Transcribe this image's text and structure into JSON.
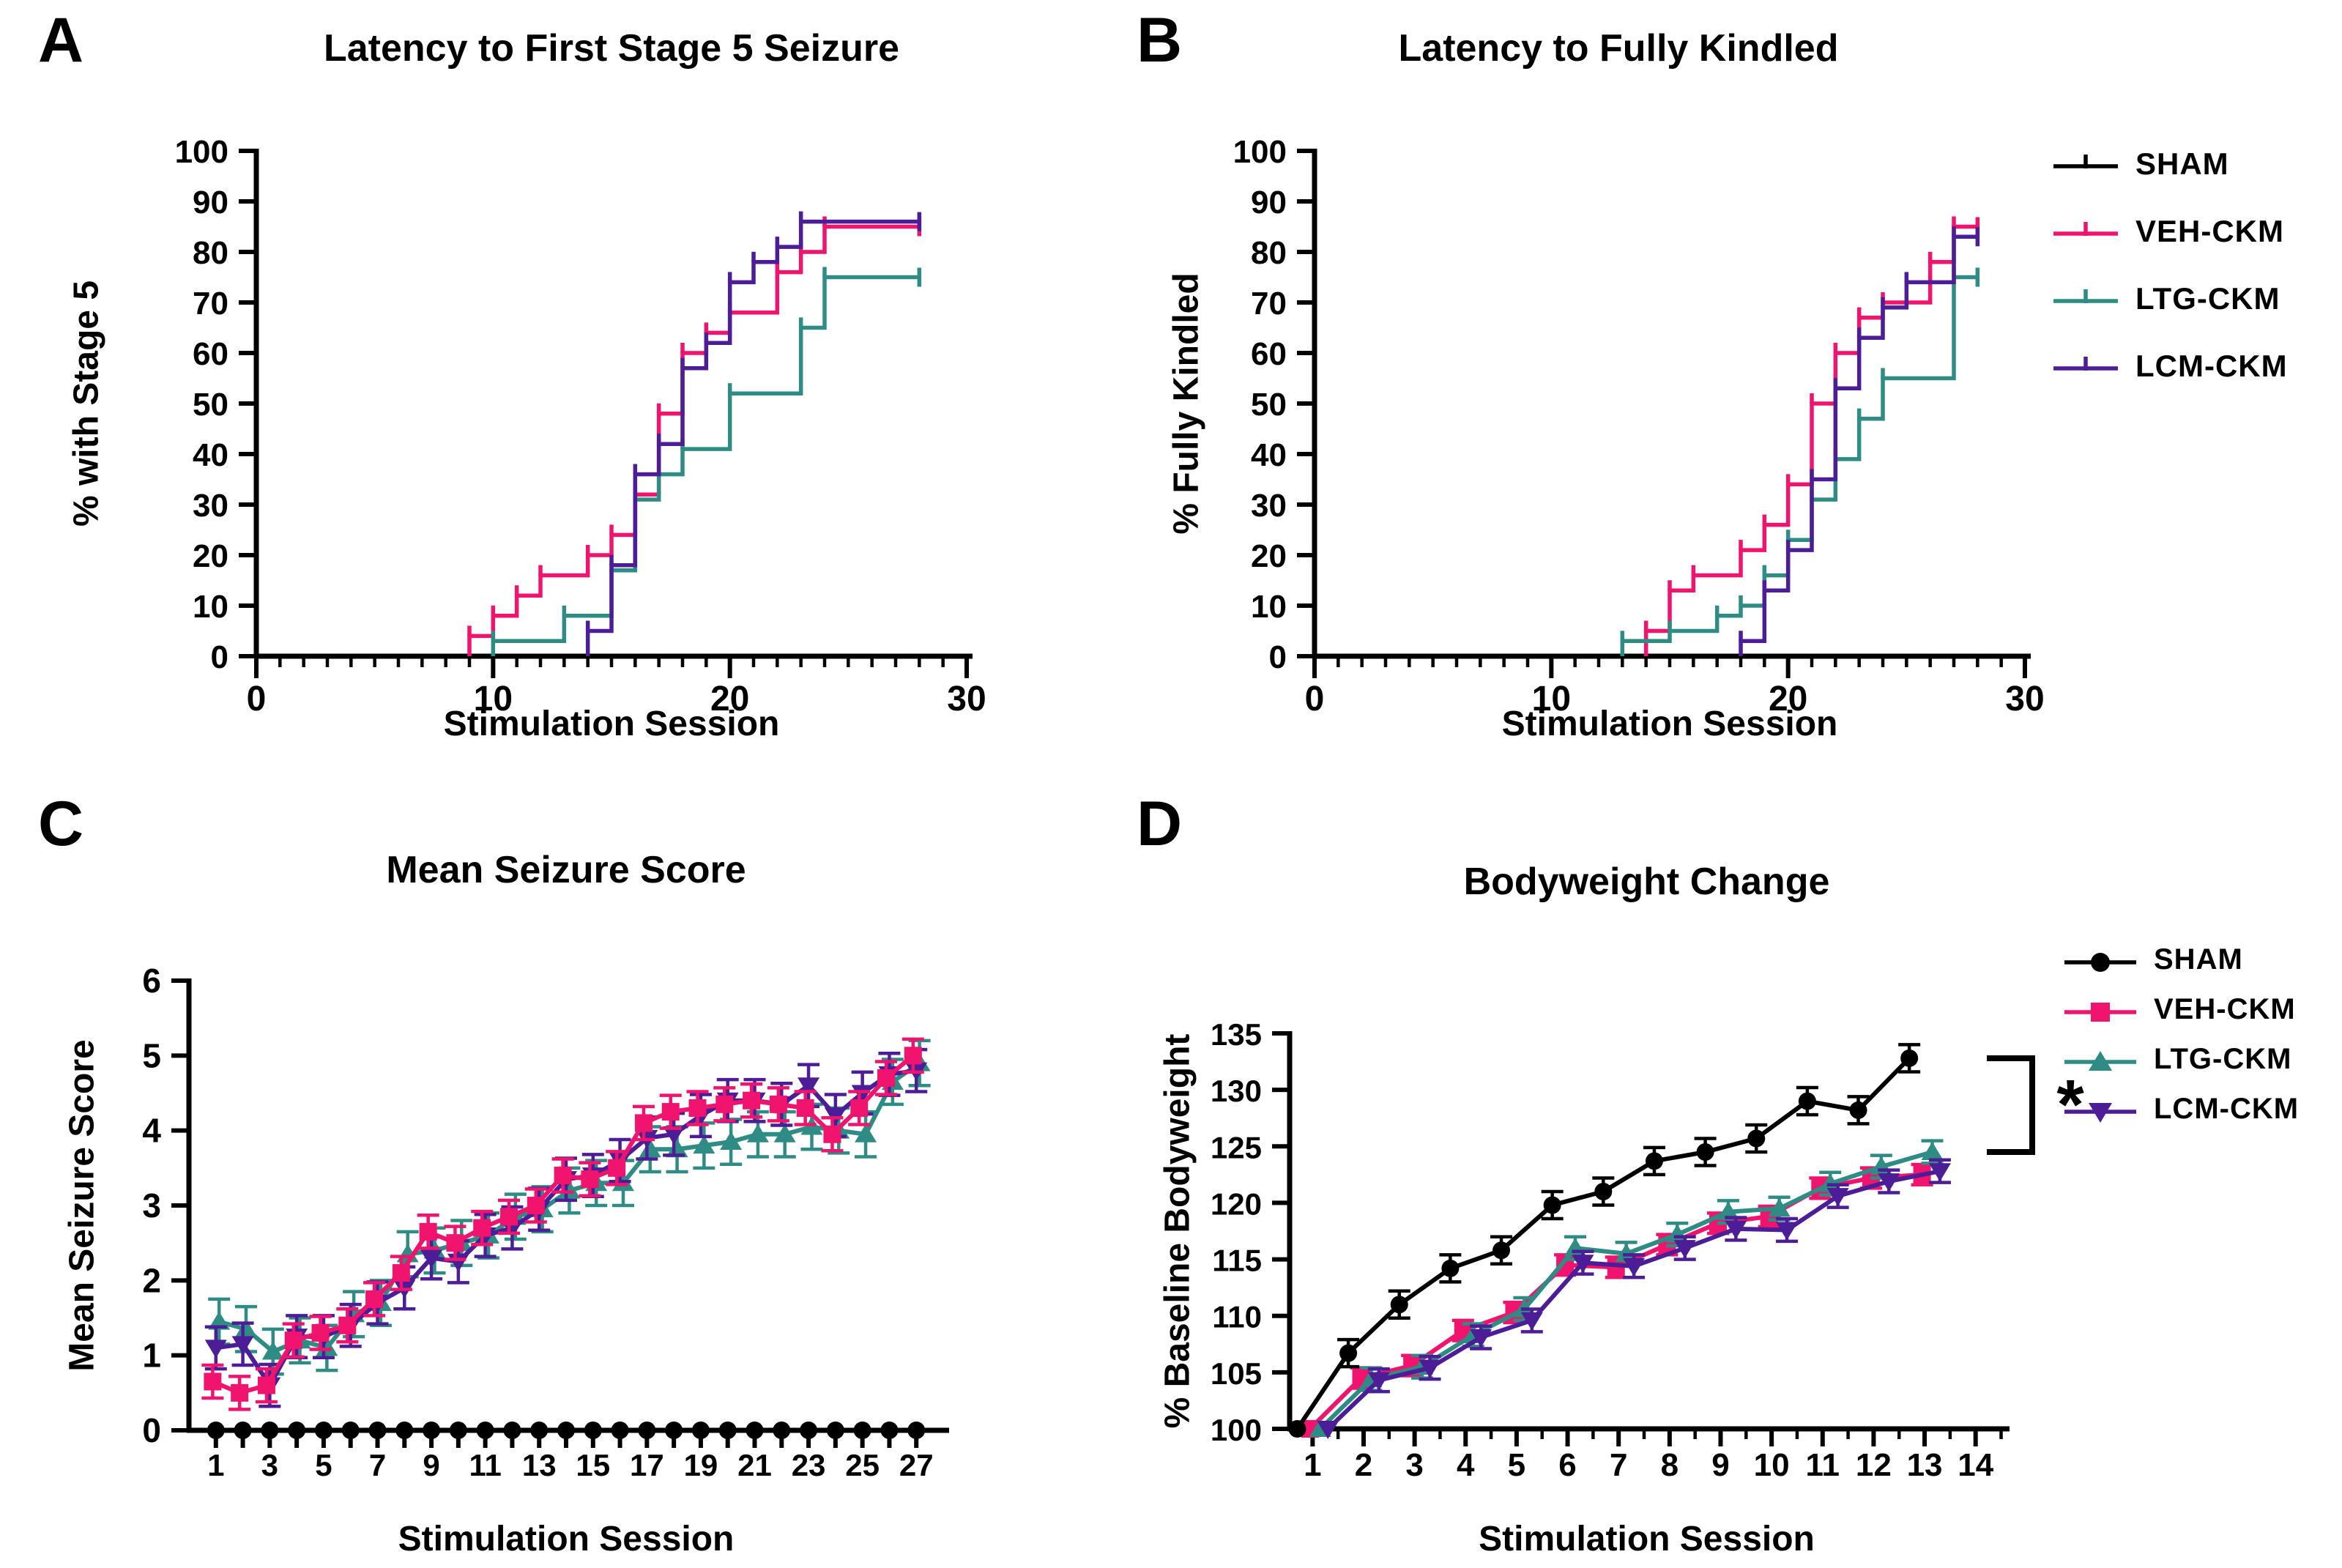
{
  "colors": {
    "SHAM": "#000000",
    "VEH-CKM": "#F0146E",
    "LTG-CKM": "#2E8C85",
    "LCM-CKM": "#4C1D96",
    "background": "#FFFFFF",
    "text": "#000000"
  },
  "panels": {
    "A": {
      "letter": "A",
      "title": "Latency to First Stage 5 Seizure",
      "y_label": "% with Stage 5",
      "x_label": "Stimulation Session"
    },
    "B": {
      "letter": "B",
      "title": "Latency to Fully Kindled",
      "y_label": "% Fully Kindled",
      "x_label": "Stimulation Session"
    },
    "C": {
      "letter": "C",
      "title": "Mean Seizure Score",
      "y_label": "Mean Seizure Score",
      "x_label": "Stimulation Session"
    },
    "D": {
      "letter": "D",
      "title": "Bodyweight Change",
      "y_label": "% Baseline Bodyweight",
      "x_label": "Stimulation Session"
    }
  },
  "legend_top": {
    "items": [
      {
        "label": "SHAM",
        "series": "SHAM",
        "marker": "step-tick"
      },
      {
        "label": "VEH-CKM",
        "series": "VEH-CKM",
        "marker": "step-tick"
      },
      {
        "label": "LTG-CKM",
        "series": "LTG-CKM",
        "marker": "step-tick"
      },
      {
        "label": "LCM-CKM",
        "series": "LCM-CKM",
        "marker": "step-tick"
      }
    ]
  },
  "legend_bottom": {
    "items": [
      {
        "label": "SHAM",
        "series": "SHAM",
        "marker": "circle"
      },
      {
        "label": "VEH-CKM",
        "series": "VEH-CKM",
        "marker": "square"
      },
      {
        "label": "LTG-CKM",
        "series": "LTG-CKM",
        "marker": "triangle-up"
      },
      {
        "label": "LCM-CKM",
        "series": "LCM-CKM",
        "marker": "triangle-down"
      }
    ]
  },
  "significance_label": "*",
  "chart_data": [
    {
      "panel": "A",
      "type": "step",
      "title": "Latency to First Stage 5 Seizure",
      "xlabel": "Stimulation Session",
      "ylabel": "% with Stage 5",
      "xlim": [
        0,
        30
      ],
      "ylim": [
        0,
        100
      ],
      "x_major_ticks": [
        0,
        10,
        20,
        30
      ],
      "x_minor_step": 1,
      "y_ticks": [
        0,
        10,
        20,
        30,
        40,
        50,
        60,
        70,
        80,
        90,
        100
      ],
      "end_x": 28,
      "series": [
        {
          "name": "SHAM",
          "steps": []
        },
        {
          "name": "VEH-CKM",
          "steps": [
            [
              9,
              4
            ],
            [
              10,
              8
            ],
            [
              11,
              12
            ],
            [
              12,
              16
            ],
            [
              14,
              20
            ],
            [
              15,
              24
            ],
            [
              16,
              32
            ],
            [
              17,
              48
            ],
            [
              18,
              60
            ],
            [
              19,
              64
            ],
            [
              20,
              68
            ],
            [
              22,
              76
            ],
            [
              23,
              80
            ],
            [
              24,
              85
            ]
          ]
        },
        {
          "name": "LTG-CKM",
          "steps": [
            [
              10,
              3
            ],
            [
              13,
              8
            ],
            [
              15,
              17
            ],
            [
              16,
              31
            ],
            [
              17,
              36
            ],
            [
              18,
              41
            ],
            [
              20,
              52
            ],
            [
              23,
              65
            ],
            [
              24,
              75
            ]
          ]
        },
        {
          "name": "LCM-CKM",
          "steps": [
            [
              14,
              5
            ],
            [
              15,
              18
            ],
            [
              16,
              36
            ],
            [
              17,
              42
            ],
            [
              18,
              57
            ],
            [
              19,
              62
            ],
            [
              20,
              74
            ],
            [
              21,
              78
            ],
            [
              22,
              81
            ],
            [
              23,
              86
            ]
          ]
        }
      ]
    },
    {
      "panel": "B",
      "type": "step",
      "title": "Latency to Fully Kindled",
      "xlabel": "Stimulation Session",
      "ylabel": "% Fully Kindled",
      "xlim": [
        0,
        30
      ],
      "ylim": [
        0,
        100
      ],
      "x_major_ticks": [
        0,
        10,
        20,
        30
      ],
      "x_minor_step": 1,
      "y_ticks": [
        0,
        10,
        20,
        30,
        40,
        50,
        60,
        70,
        80,
        90,
        100
      ],
      "end_x": 28,
      "series": [
        {
          "name": "SHAM",
          "steps": []
        },
        {
          "name": "VEH-CKM",
          "steps": [
            [
              14,
              5
            ],
            [
              15,
              13
            ],
            [
              16,
              16
            ],
            [
              18,
              21
            ],
            [
              19,
              26
            ],
            [
              20,
              34
            ],
            [
              21,
              50
            ],
            [
              22,
              60
            ],
            [
              23,
              67
            ],
            [
              24,
              70
            ],
            [
              26,
              78
            ],
            [
              27,
              85
            ]
          ]
        },
        {
          "name": "LTG-CKM",
          "steps": [
            [
              13,
              3
            ],
            [
              15,
              5
            ],
            [
              17,
              8
            ],
            [
              18,
              10
            ],
            [
              19,
              16
            ],
            [
              20,
              23
            ],
            [
              21,
              31
            ],
            [
              22,
              39
            ],
            [
              23,
              47
            ],
            [
              24,
              55
            ],
            [
              27,
              75
            ]
          ]
        },
        {
          "name": "LCM-CKM",
          "steps": [
            [
              18,
              3
            ],
            [
              19,
              13
            ],
            [
              20,
              21
            ],
            [
              21,
              35
            ],
            [
              22,
              53
            ],
            [
              23,
              63
            ],
            [
              24,
              69
            ],
            [
              25,
              74
            ],
            [
              27,
              83
            ]
          ]
        }
      ]
    },
    {
      "panel": "C",
      "type": "line",
      "title": "Mean Seizure Score",
      "xlabel": "Stimulation Session",
      "ylabel": "Mean Seizure Score",
      "xlim": [
        0,
        28
      ],
      "ylim": [
        0,
        6
      ],
      "x_major_ticks": [
        1,
        2,
        3,
        4,
        5,
        6,
        7,
        8,
        9,
        10,
        11,
        12,
        13,
        14,
        15,
        16,
        17,
        18,
        19,
        20,
        21,
        22,
        23,
        24,
        25,
        26,
        27
      ],
      "x_label_ticks": [
        1,
        3,
        5,
        7,
        9,
        11,
        13,
        15,
        17,
        19,
        21,
        23,
        25,
        27
      ],
      "y_ticks": [
        0,
        1,
        2,
        3,
        4,
        5,
        6
      ],
      "x_start": 1,
      "series": [
        {
          "name": "SHAM",
          "marker": "circle",
          "err": 0,
          "x_offset": 0,
          "values": [
            0,
            0,
            0,
            0,
            0,
            0,
            0,
            0,
            0,
            0,
            0,
            0,
            0,
            0,
            0,
            0,
            0,
            0,
            0,
            0,
            0,
            0,
            0,
            0,
            0,
            0,
            0
          ]
        },
        {
          "name": "LTG-CKM",
          "marker": "triangle-up",
          "err": 0.3,
          "x_offset": 0.12,
          "values": [
            1.45,
            1.35,
            1.05,
            1.2,
            1.1,
            1.55,
            1.7,
            2.35,
            2.4,
            2.5,
            2.6,
            2.85,
            2.95,
            3.2,
            3.3,
            3.3,
            3.75,
            3.75,
            3.8,
            3.85,
            3.95,
            3.95,
            4.05,
            4.0,
            3.95,
            4.65,
            4.9
          ]
        },
        {
          "name": "LCM-CKM",
          "marker": "triangle-down",
          "err": 0.28,
          "x_offset": 0,
          "values": [
            1.1,
            1.15,
            0.6,
            1.25,
            1.25,
            1.4,
            1.7,
            1.9,
            2.3,
            2.25,
            2.6,
            2.7,
            2.95,
            3.35,
            3.4,
            3.6,
            3.9,
            3.95,
            4.2,
            4.4,
            4.4,
            4.35,
            4.6,
            4.2,
            4.5,
            4.75,
            4.8
          ]
        },
        {
          "name": "VEH-CKM",
          "marker": "square",
          "err": 0.22,
          "x_offset": -0.12,
          "values": [
            0.65,
            0.5,
            0.6,
            1.2,
            1.3,
            1.4,
            1.75,
            2.1,
            2.65,
            2.5,
            2.7,
            2.85,
            3.0,
            3.4,
            3.35,
            3.5,
            4.1,
            4.25,
            4.3,
            4.35,
            4.4,
            4.35,
            4.3,
            3.95,
            4.3,
            4.7,
            5.0
          ]
        }
      ]
    },
    {
      "panel": "D",
      "type": "line",
      "title": "Bodyweight Change",
      "xlabel": "Stimulation Session",
      "ylabel": "% Baseline Bodyweight",
      "xlim": [
        0.55,
        14.55
      ],
      "ylim": [
        100,
        135
      ],
      "x_major_ticks": [
        1,
        2,
        3,
        4,
        5,
        6,
        7,
        8,
        9,
        10,
        11,
        12,
        13,
        14
      ],
      "x_label_ticks": [
        1,
        2,
        3,
        4,
        5,
        6,
        7,
        8,
        9,
        10,
        11,
        12,
        13,
        14
      ],
      "x_minor_ticks": [
        1.5,
        2.5,
        3.5,
        4.5,
        5.5,
        6.5,
        7.5,
        8.5,
        9.5,
        10.5,
        11.5,
        12.5,
        13.5,
        14.5
      ],
      "y_ticks": [
        100,
        105,
        110,
        115,
        120,
        125,
        130,
        135
      ],
      "x_start": 1,
      "series": [
        {
          "name": "VEH-CKM",
          "marker": "square",
          "err": 0.9,
          "x_offset": -0.05,
          "values": [
            100,
            104.5,
            105.6,
            108.7,
            110.3,
            114.5,
            114.3,
            116.3,
            118.2,
            118.8,
            121.3,
            122.2,
            122.5
          ]
        },
        {
          "name": "LTG-CKM",
          "marker": "triangle-up",
          "err": 1.0,
          "x_offset": 0.15,
          "values": [
            100,
            104.4,
            105.5,
            108.3,
            110.6,
            116.0,
            115.5,
            117.2,
            119.2,
            119.5,
            121.7,
            123.2,
            124.5
          ]
        },
        {
          "name": "LCM-CKM",
          "marker": "triangle-down",
          "err": 1.0,
          "x_offset": 0.3,
          "values": [
            100,
            104.3,
            105.4,
            108.1,
            109.6,
            114.7,
            114.4,
            116.0,
            117.7,
            117.6,
            120.6,
            121.9,
            122.8
          ]
        },
        {
          "name": "SHAM",
          "marker": "circle",
          "err": 1.2,
          "x_offset": -0.3,
          "values": [
            100,
            106.7,
            111.0,
            114.2,
            115.8,
            119.8,
            121.0,
            123.7,
            124.5,
            125.7,
            129.0,
            128.2,
            132.8
          ]
        }
      ],
      "significance": {
        "label": "*",
        "from_series": "SHAM",
        "to_series": "LTG-CKM"
      }
    }
  ]
}
